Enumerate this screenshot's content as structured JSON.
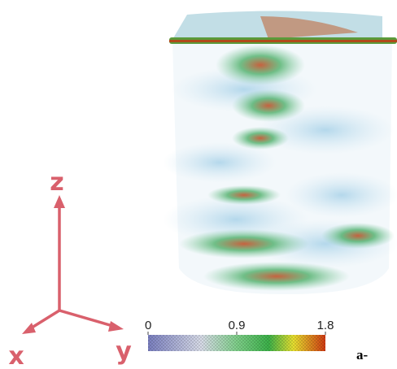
{
  "axes": {
    "z": "z",
    "x": "x",
    "y": "y"
  },
  "colorbar": {
    "range": [
      0,
      1.8
    ],
    "ticks": [
      0,
      0.9,
      1.8
    ]
  },
  "panel_label": "a-"
}
